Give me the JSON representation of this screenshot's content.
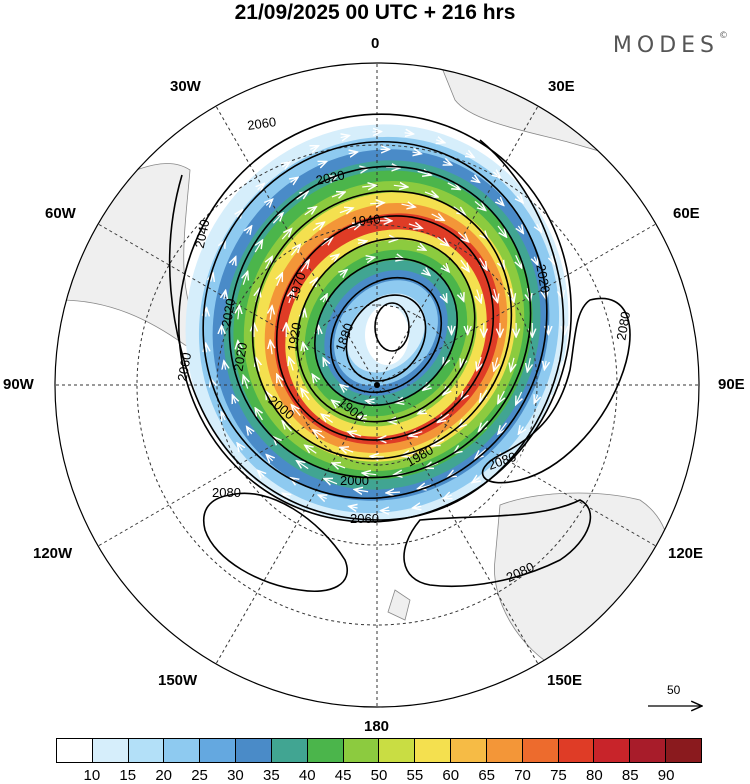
{
  "title": "21/09/2025  00 UTC  + 216 hrs",
  "brand": {
    "name": "MODES",
    "mark": "©"
  },
  "longitude_labels": {
    "n0": "0",
    "n30e": "30E",
    "n60e": "60E",
    "n90e": "90E",
    "n120e": "120E",
    "n150e": "150E",
    "n180": "180",
    "n150w": "150W",
    "n120w": "120W",
    "n90w": "90W",
    "n60w": "60W",
    "n30w": "30W"
  },
  "contour_labels": {
    "c2060a": "2060",
    "c2040": "2040",
    "c2020a": "2020",
    "c1940": "1940",
    "c1970": "1970",
    "c2020b": "2020",
    "c2020c": "2020",
    "c2060b": "2060",
    "c1880": "1880",
    "c1920": "1920",
    "c1900": "1900",
    "c2000a": "2000",
    "c1980": "1980",
    "c2000b": "2000",
    "c2060c": "2060",
    "c2080a": "2080",
    "c2080b": "2080",
    "c2080c": "2080",
    "c2080d": "2080",
    "c2080e": "2080",
    "c2020d": "2020"
  },
  "reference_vector": {
    "label": "50",
    "value": 50
  },
  "colorbar": {
    "colors": [
      "#ffffff",
      "#d6eefb",
      "#b3e0f8",
      "#8ecaf0",
      "#64a8e0",
      "#4a8bc8",
      "#41a592",
      "#4bb54b",
      "#8ccb3f",
      "#c9dd43",
      "#f4e04f",
      "#f6bb45",
      "#f39638",
      "#ed6b2d",
      "#df3c26",
      "#c8242a",
      "#a81c2a",
      "#8a1a1e"
    ],
    "ticks": [
      "10",
      "15",
      "20",
      "25",
      "30",
      "35",
      "40",
      "45",
      "50",
      "55",
      "60",
      "65",
      "70",
      "75",
      "80",
      "85",
      "90"
    ]
  },
  "jet_colors": [
    "#d6eefb",
    "#8ecaf0",
    "#4a8bc8",
    "#41a592",
    "#4bb54b",
    "#8ccb3f",
    "#f4e04f",
    "#f39638",
    "#df3c26"
  ]
}
